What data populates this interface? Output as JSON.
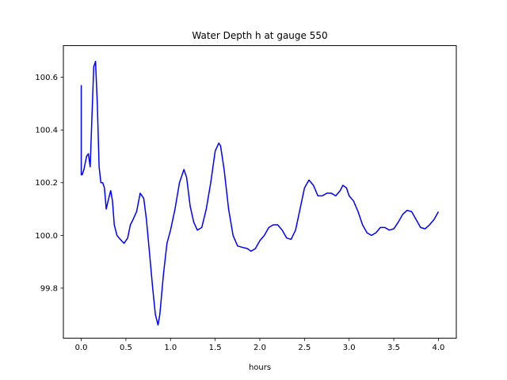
{
  "chart_data": {
    "type": "line",
    "title": "Water Depth h at gauge 550",
    "xlabel": "hours",
    "ylabel": "",
    "xlim": [
      -0.2,
      4.2
    ],
    "ylim": [
      99.61,
      100.72
    ],
    "grid": false,
    "xticks": [
      0.0,
      0.5,
      1.0,
      1.5,
      2.0,
      2.5,
      3.0,
      3.5,
      4.0
    ],
    "xtick_labels": [
      "0.0",
      "0.5",
      "1.0",
      "1.5",
      "2.0",
      "2.5",
      "3.0",
      "3.5",
      "4.0"
    ],
    "yticks": [
      99.8,
      100.0,
      100.2,
      100.4,
      100.6
    ],
    "ytick_labels": [
      "99.8",
      "100.0",
      "100.2",
      "100.4",
      "100.6"
    ],
    "series": [
      {
        "color": "#0000ff",
        "x": [
          0.0,
          0.0,
          0.01,
          0.03,
          0.06,
          0.08,
          0.1,
          0.12,
          0.14,
          0.16,
          0.18,
          0.2,
          0.22,
          0.24,
          0.26,
          0.28,
          0.3,
          0.33,
          0.35,
          0.37,
          0.4,
          0.45,
          0.48,
          0.52,
          0.55,
          0.58,
          0.62,
          0.66,
          0.7,
          0.73,
          0.76,
          0.8,
          0.83,
          0.86,
          0.88,
          0.92,
          0.96,
          1.0,
          1.05,
          1.1,
          1.15,
          1.18,
          1.22,
          1.26,
          1.3,
          1.35,
          1.4,
          1.45,
          1.5,
          1.54,
          1.56,
          1.6,
          1.65,
          1.7,
          1.75,
          1.8,
          1.86,
          1.9,
          1.95,
          2.0,
          2.05,
          2.1,
          2.15,
          2.2,
          2.25,
          2.3,
          2.35,
          2.4,
          2.45,
          2.5,
          2.55,
          2.6,
          2.65,
          2.7,
          2.75,
          2.8,
          2.85,
          2.9,
          2.93,
          2.97,
          3.0,
          3.05,
          3.1,
          3.15,
          3.2,
          3.25,
          3.3,
          3.35,
          3.4,
          3.45,
          3.5,
          3.55,
          3.6,
          3.65,
          3.7,
          3.75,
          3.8,
          3.85,
          3.9,
          3.95,
          4.0
        ],
        "y": [
          100.57,
          100.23,
          100.23,
          100.25,
          100.3,
          100.31,
          100.26,
          100.45,
          100.64,
          100.66,
          100.5,
          100.26,
          100.2,
          100.2,
          100.18,
          100.1,
          100.13,
          100.17,
          100.13,
          100.04,
          100.0,
          99.98,
          99.97,
          99.99,
          100.04,
          100.06,
          100.09,
          100.16,
          100.14,
          100.06,
          99.95,
          99.8,
          99.7,
          99.66,
          99.7,
          99.85,
          99.97,
          100.02,
          100.1,
          100.2,
          100.25,
          100.22,
          100.11,
          100.05,
          100.02,
          100.03,
          100.1,
          100.2,
          100.32,
          100.35,
          100.34,
          100.25,
          100.1,
          100.0,
          99.96,
          99.955,
          99.95,
          99.94,
          99.95,
          99.98,
          100.0,
          100.03,
          100.04,
          100.04,
          100.02,
          99.99,
          99.985,
          100.02,
          100.1,
          100.18,
          100.21,
          100.19,
          100.15,
          100.15,
          100.16,
          100.16,
          100.15,
          100.17,
          100.19,
          100.18,
          100.15,
          100.13,
          100.09,
          100.04,
          100.01,
          100.0,
          100.01,
          100.03,
          100.03,
          100.02,
          100.025,
          100.05,
          100.08,
          100.095,
          100.09,
          100.06,
          100.03,
          100.025,
          100.04,
          100.06,
          100.09
        ]
      }
    ]
  }
}
